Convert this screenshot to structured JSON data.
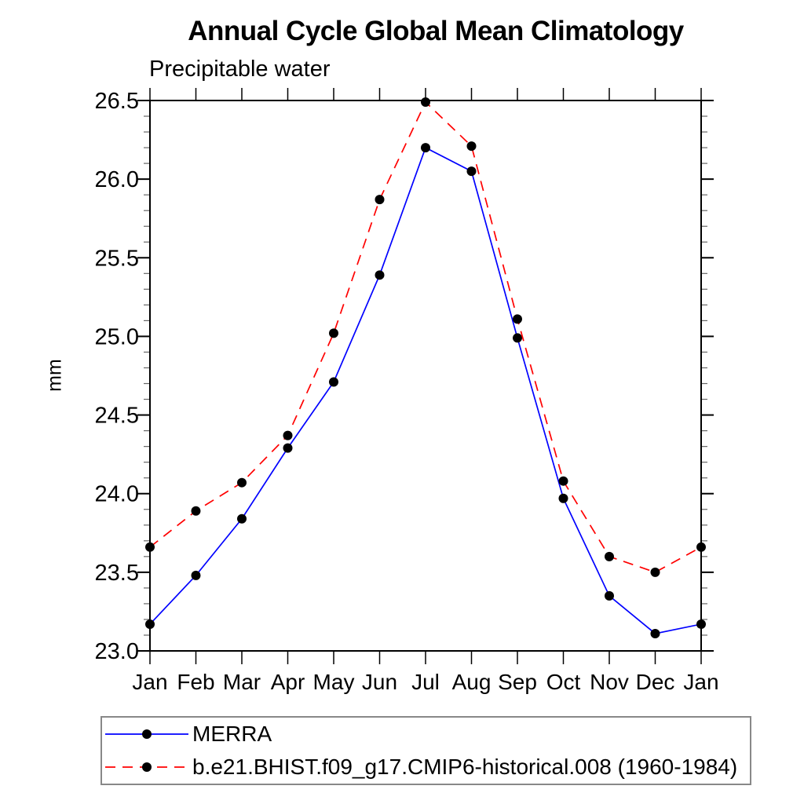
{
  "page": {
    "background": "#ffffff",
    "text_color": "#000000",
    "axis_color": "#000000",
    "minor_tick_color": "#666666",
    "legend_border_color": "#888888"
  },
  "chart_data": {
    "type": "line",
    "title": "Annual Cycle Global Mean Climatology",
    "subtitle": "Precipitable water",
    "ylabel": "mm",
    "xlabel": "",
    "categories": [
      "Jan",
      "Feb",
      "Mar",
      "Apr",
      "May",
      "Jun",
      "Jul",
      "Aug",
      "Sep",
      "Oct",
      "Nov",
      "Dec",
      "Jan"
    ],
    "ylim": [
      23.0,
      26.5
    ],
    "ytick_major_step": 0.5,
    "ytick_minor_step": 0.1,
    "ytick_labels": [
      "23.0",
      "23.5",
      "24.0",
      "24.5",
      "25.0",
      "25.5",
      "26.0",
      "26.5"
    ],
    "grid": false,
    "legend_position": "bottom",
    "series": [
      {
        "name": "MERRA",
        "color": "#0000ff",
        "line_style": "solid",
        "marker": "circle",
        "marker_color": "#000000",
        "values": [
          23.17,
          23.48,
          23.84,
          24.29,
          24.71,
          25.39,
          26.2,
          26.05,
          24.99,
          23.97,
          23.35,
          23.11,
          23.17
        ]
      },
      {
        "name": "b.e21.BHIST.f09_g17.CMIP6-historical.008 (1960-1984)",
        "color": "#ff0000",
        "line_style": "dashed",
        "marker": "circle",
        "marker_color": "#000000",
        "values": [
          23.66,
          23.89,
          24.07,
          24.37,
          25.02,
          25.87,
          26.49,
          26.21,
          25.11,
          24.08,
          23.6,
          23.5,
          23.66
        ]
      }
    ]
  }
}
